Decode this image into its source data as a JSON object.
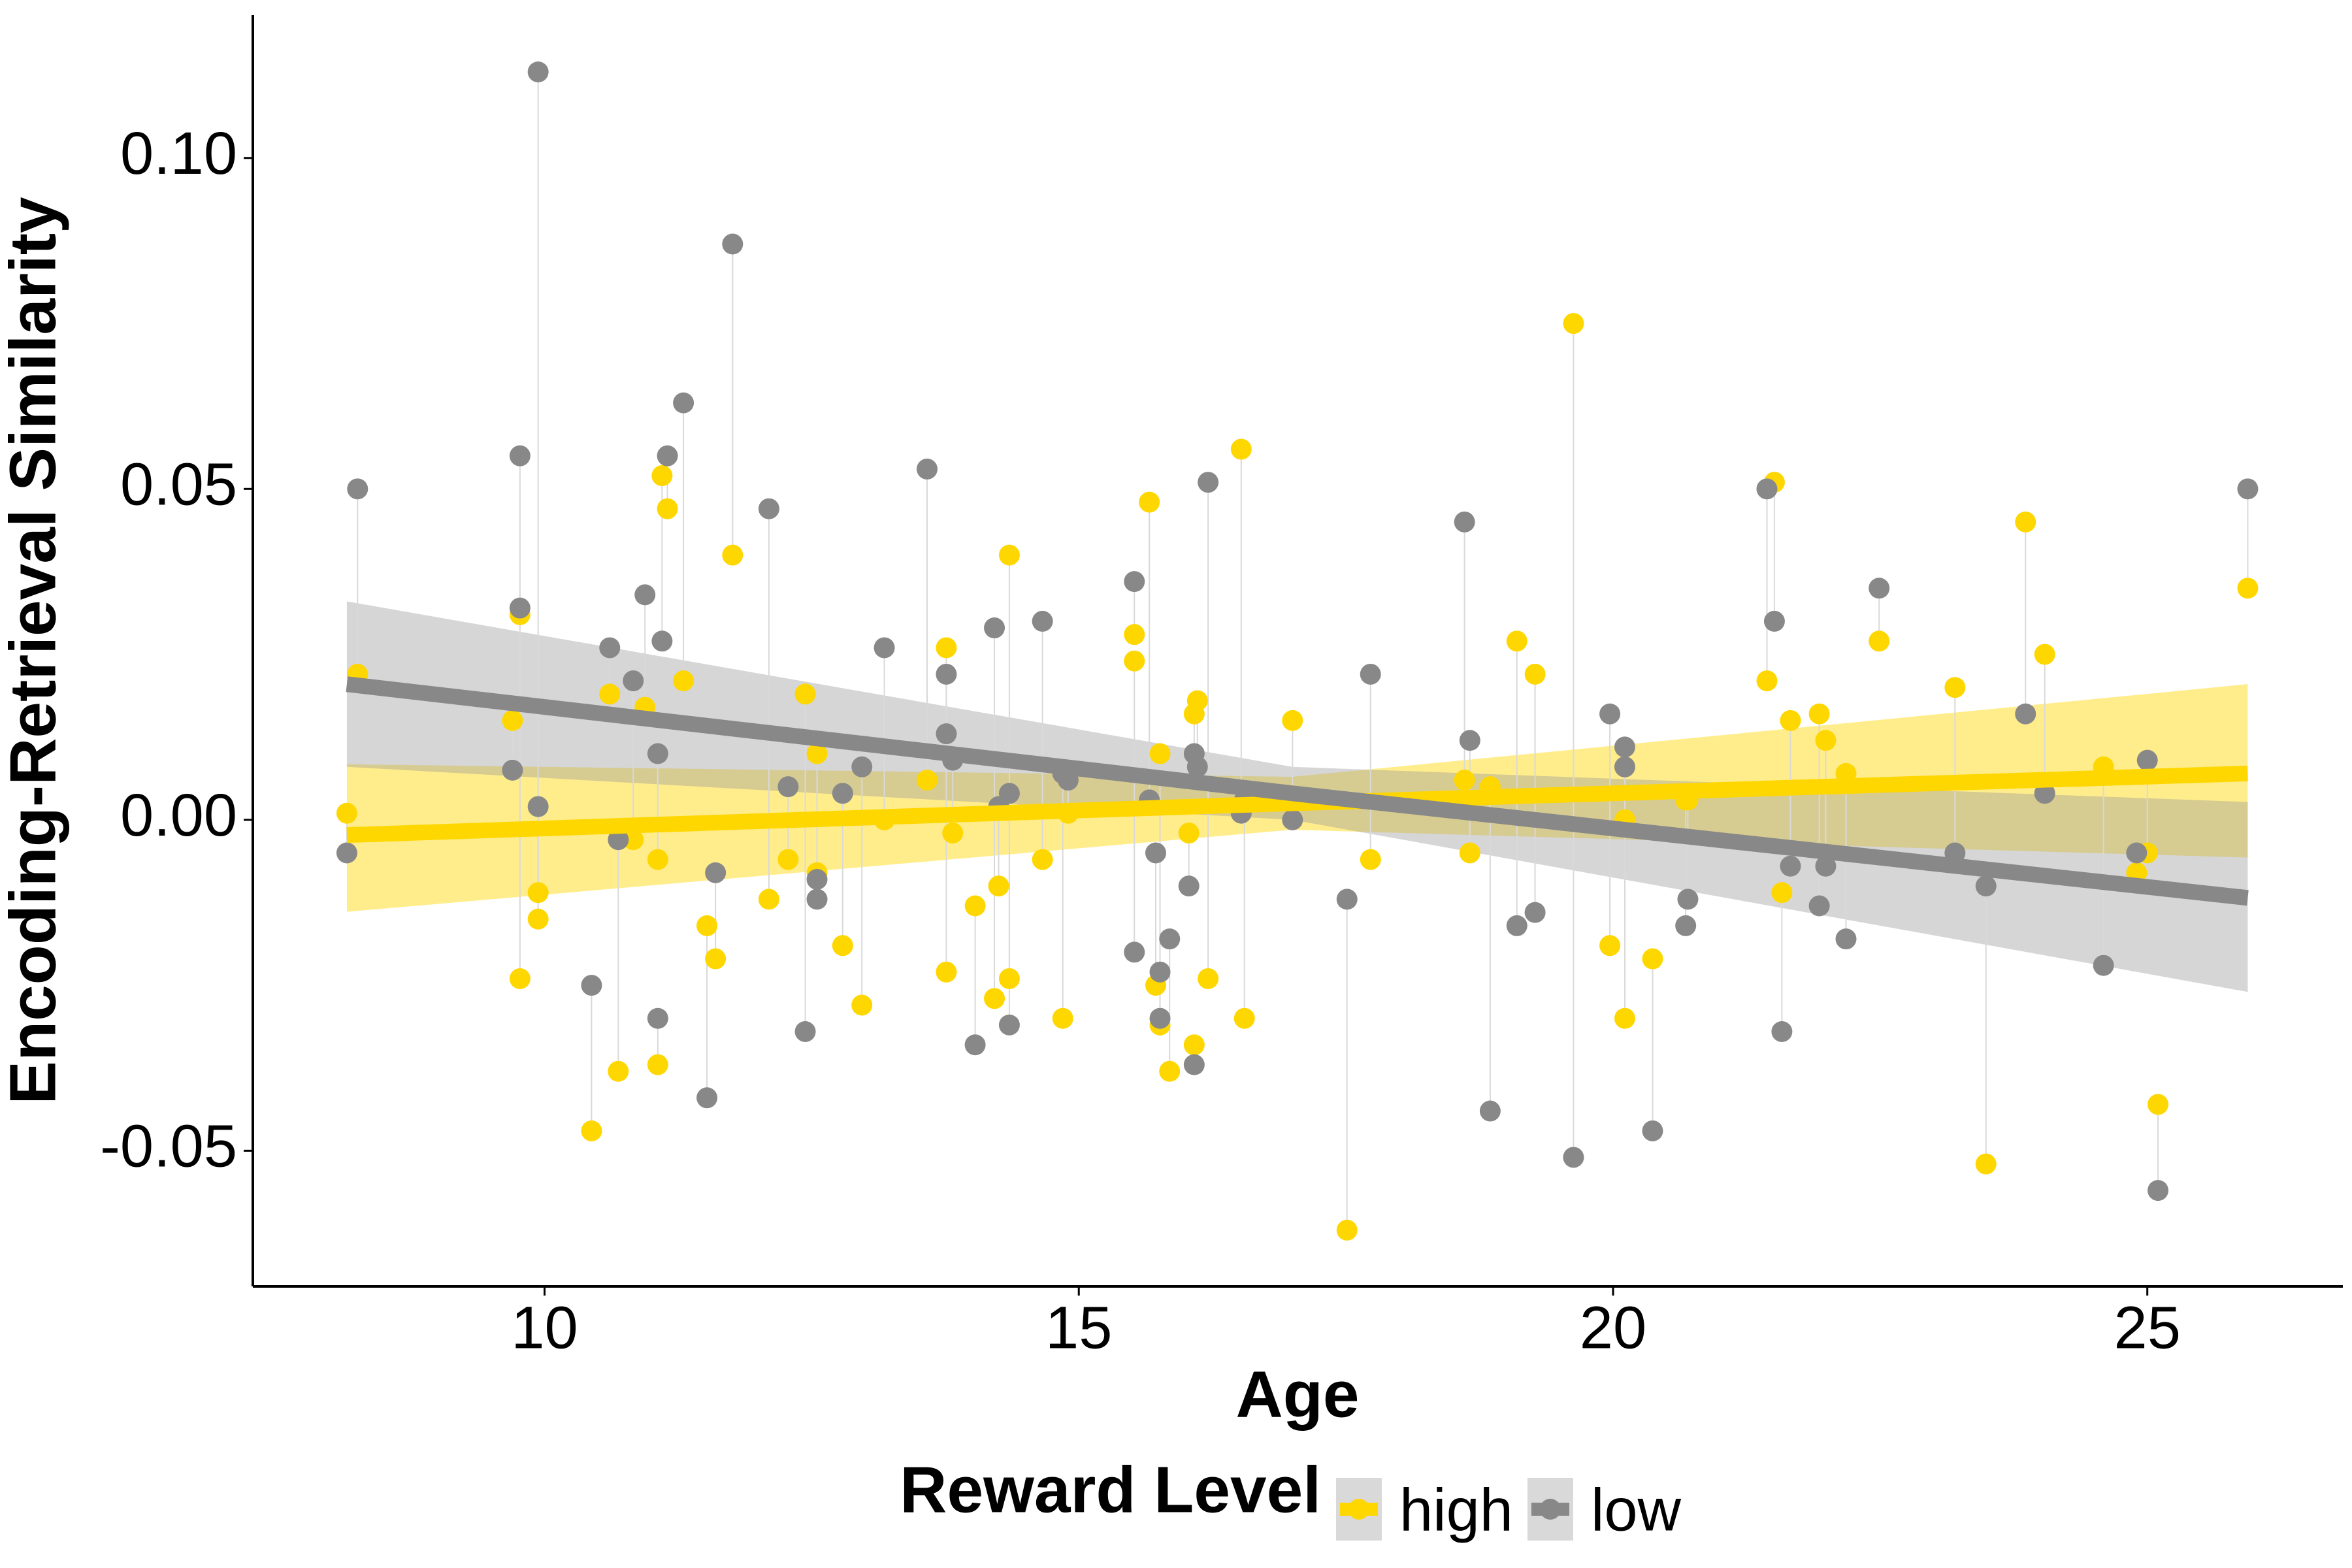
{
  "chart_data": {
    "type": "scatter",
    "x_label": "Age",
    "y_label": "Encoding-Retrieval Similarity",
    "legend_title": "Reward Level",
    "legend_position": "bottom",
    "grid": false,
    "xlim": [
      7.27,
      26.83
    ],
    "ylim": [
      -0.0705,
      0.1216
    ],
    "xticks": [
      10,
      15,
      20,
      25
    ],
    "yticks": [
      -0.05,
      {
        "value": 0,
        "label": "0.00"
      },
      {
        "value": 0.05,
        "label": "0.05"
      },
      {
        "value": 0.1,
        "label": "0.10"
      }
    ],
    "x": [
      8.15,
      8.25,
      9.77,
      9.77,
      9.7,
      9.94,
      9.94,
      10.44,
      10.61,
      10.69,
      10.83,
      10.94,
      11.06,
      11.06,
      11.1,
      11.15,
      11.3,
      11.52,
      11.6,
      11.76,
      12.1,
      12.28,
      12.44,
      12.55,
      12.55,
      12.79,
      12.97,
      13.18,
      13.58,
      13.76,
      13.76,
      13.82,
      14.03,
      14.21,
      14.25,
      14.35,
      14.35,
      14.66,
      14.85,
      14.9,
      15.52,
      15.52,
      15.66,
      15.72,
      15.76,
      15.76,
      15.85,
      16.03,
      16.08,
      16.08,
      16.11,
      16.21,
      16.52,
      16.55,
      17.0,
      17.51,
      17.73,
      18.61,
      18.66,
      18.85,
      19.1,
      19.27,
      19.63,
      19.97,
      20.11,
      20.11,
      20.37,
      20.68,
      20.7,
      21.44,
      21.51,
      21.58,
      21.66,
      21.93,
      21.99,
      22.18,
      22.49,
      23.2,
      23.49,
      23.86,
      24.04,
      24.59,
      24.9,
      25.0,
      25.1,
      25.94
    ],
    "series": [
      {
        "name": "high",
        "color": "#FFD700",
        "band_color": "#FFD700",
        "values": [
          0.001,
          0.022,
          -0.024,
          0.031,
          0.015,
          -0.011,
          -0.015,
          -0.047,
          0.019,
          -0.038,
          -0.003,
          0.017,
          -0.037,
          -0.006,
          0.052,
          0.047,
          0.021,
          -0.016,
          -0.021,
          0.04,
          -0.012,
          -0.006,
          0.019,
          -0.008,
          0.01,
          -0.019,
          -0.028,
          0.0,
          0.006,
          -0.023,
          0.026,
          -0.002,
          -0.013,
          -0.027,
          -0.01,
          0.04,
          -0.024,
          -0.006,
          -0.03,
          0.001,
          0.028,
          0.024,
          0.048,
          -0.025,
          -0.031,
          0.01,
          -0.038,
          -0.002,
          -0.034,
          0.016,
          0.018,
          -0.024,
          0.056,
          -0.03,
          0.015,
          -0.062,
          -0.006,
          0.006,
          -0.005,
          0.005,
          0.027,
          0.022,
          0.075,
          -0.019,
          -0.03,
          0.0,
          -0.021,
          0.003,
          0.003,
          0.021,
          0.051,
          -0.011,
          0.015,
          0.016,
          0.012,
          0.007,
          0.027,
          0.02,
          -0.052,
          0.045,
          0.025,
          0.008,
          -0.008,
          -0.005,
          -0.043,
          0.035
        ],
        "fit": {
          "x": [
            8.15,
            17,
            25.94
          ],
          "y": [
            -0.0023,
            0.0025,
            0.007
          ],
          "lower": [
            -0.0139,
            -0.0015,
            -0.0057
          ],
          "upper": [
            0.0084,
            0.0065,
            0.0205
          ]
        }
      },
      {
        "name": "low",
        "color": "#888888",
        "band_color": "#999999",
        "values": [
          -0.005,
          0.05,
          0.055,
          0.032,
          0.0075,
          0.113,
          0.002,
          -0.025,
          0.026,
          -0.003,
          0.021,
          0.034,
          -0.03,
          0.01,
          0.027,
          0.055,
          0.063,
          -0.042,
          -0.008,
          0.087,
          0.047,
          0.005,
          -0.032,
          -0.012,
          -0.009,
          0.004,
          0.008,
          0.026,
          0.053,
          0.022,
          0.013,
          0.009,
          -0.034,
          0.029,
          0.002,
          -0.031,
          0.004,
          0.03,
          0.007,
          0.006,
          0.036,
          -0.02,
          0.003,
          -0.005,
          -0.023,
          -0.03,
          -0.018,
          -0.01,
          -0.037,
          0.01,
          0.008,
          0.051,
          0.001,
          0.003,
          0.0,
          -0.012,
          0.022,
          0.045,
          0.012,
          -0.044,
          -0.016,
          -0.014,
          -0.051,
          0.016,
          0.011,
          0.008,
          -0.047,
          -0.016,
          -0.012,
          0.05,
          0.03,
          -0.032,
          -0.007,
          -0.013,
          -0.007,
          -0.018,
          0.035,
          -0.005,
          -0.01,
          0.016,
          0.004,
          -0.022,
          -0.005,
          0.009,
          -0.056,
          0.05
        ],
        "fit": {
          "x": [
            8.15,
            17,
            25.94
          ],
          "y": [
            0.0205,
            0.004,
            -0.0118
          ],
          "lower": [
            0.008,
            0.0,
            -0.026
          ],
          "upper": [
            0.033,
            0.008,
            0.0027
          ]
        }
      }
    ]
  }
}
